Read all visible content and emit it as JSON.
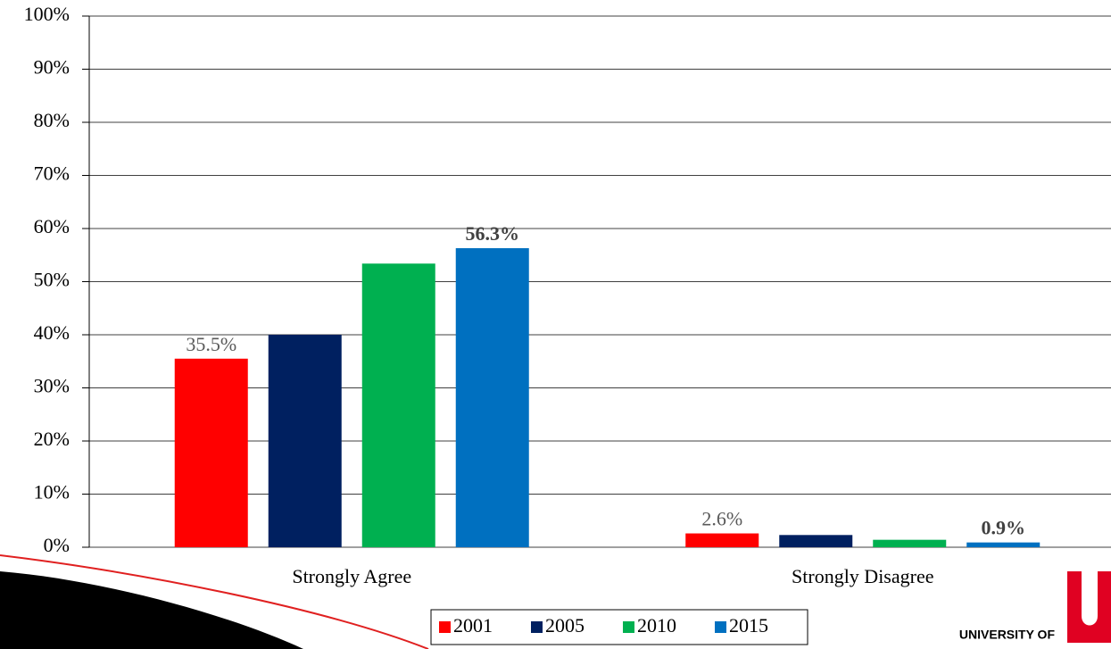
{
  "chart_data": {
    "type": "bar",
    "categories": [
      "Strongly Agree",
      "Strongly Disagree"
    ],
    "series": [
      {
        "name": "2001",
        "color": "#ff0000",
        "values": [
          35.5,
          2.6
        ],
        "value_labels": [
          "35.5%",
          "2.6%"
        ]
      },
      {
        "name": "2005",
        "color": "#002060",
        "values": [
          40.0,
          2.3
        ],
        "value_labels": [
          null,
          null
        ]
      },
      {
        "name": "2010",
        "color": "#00b050",
        "values": [
          53.4,
          1.4
        ],
        "value_labels": [
          null,
          null
        ]
      },
      {
        "name": "2015",
        "color": "#0070c0",
        "values": [
          56.3,
          0.9
        ],
        "value_labels": [
          "56.3%",
          "0.9%"
        ]
      }
    ],
    "ylim": [
      0,
      100
    ],
    "yticks": [
      {
        "value": 0,
        "label": "0%"
      },
      {
        "value": 10,
        "label": "10%"
      },
      {
        "value": 20,
        "label": "20%"
      },
      {
        "value": 30,
        "label": "30%"
      },
      {
        "value": 40,
        "label": "40%"
      },
      {
        "value": 50,
        "label": "50%"
      },
      {
        "value": 60,
        "label": "60%"
      },
      {
        "value": 70,
        "label": "70%"
      },
      {
        "value": 80,
        "label": "80%"
      },
      {
        "value": 90,
        "label": "90%"
      },
      {
        "value": 100,
        "label": "100%"
      }
    ],
    "grid": true,
    "legend": "bottom"
  },
  "logo_text": "UNIVERSITY OF"
}
